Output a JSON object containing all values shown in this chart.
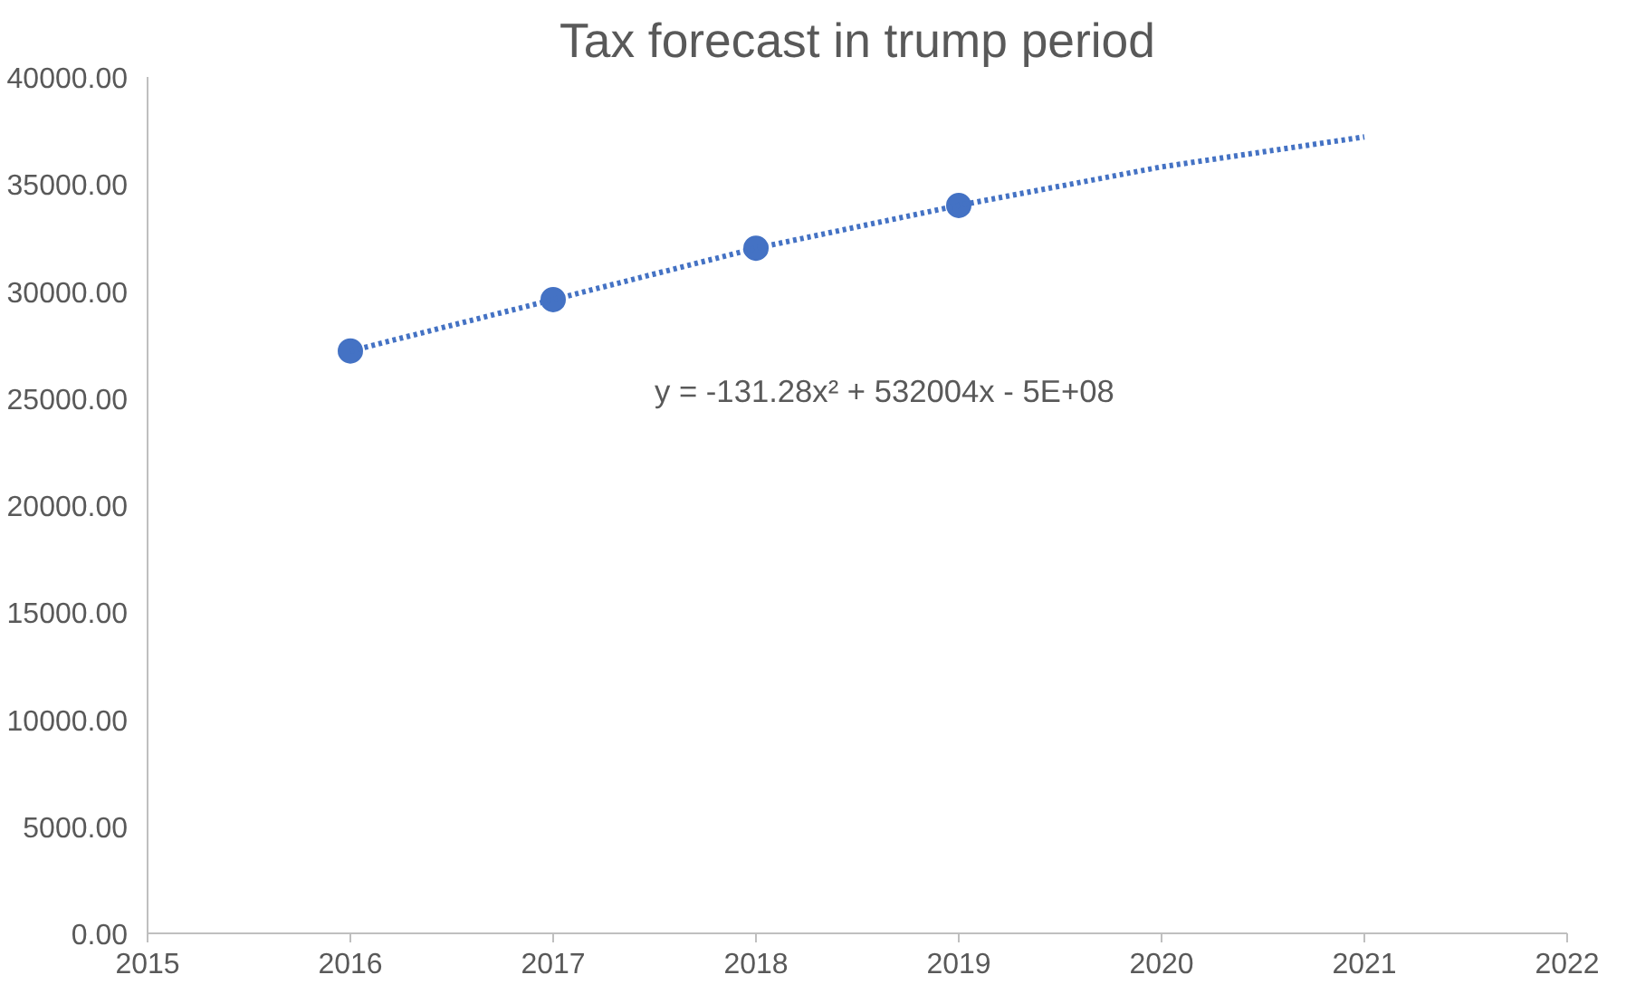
{
  "chart_data": {
    "type": "scatter",
    "title": "Tax forecast in trump period",
    "annotations": [
      "y = -131.28x² + 532004x - 5E+08"
    ],
    "x": [
      2016,
      2017,
      2018,
      2019
    ],
    "series": [
      {
        "color": "#4472c4",
        "marker": "circle",
        "values": [
          27200,
          29600,
          32000,
          34000
        ]
      },
      {
        "type": "line",
        "color": "#4472c4",
        "line_style": "dotted",
        "x": [
          2016,
          2017,
          2018,
          2019,
          2020,
          2021
        ],
        "values": [
          27200,
          29600,
          32000,
          34000,
          35800,
          37200
        ]
      }
    ],
    "xlim": [
      2015,
      2022
    ],
    "xticks": [
      2015,
      2016,
      2017,
      2018,
      2019,
      2020,
      2021,
      2022
    ],
    "ylim": [
      0,
      40000
    ],
    "yticks": [
      {
        "value": 0,
        "label": "0.00"
      },
      {
        "value": 5000,
        "label": "5000.00"
      },
      {
        "value": 10000,
        "label": "10000.00"
      },
      {
        "value": 15000,
        "label": "15000.00"
      },
      {
        "value": 20000,
        "label": "20000.00"
      },
      {
        "value": 25000,
        "label": "25000.00"
      },
      {
        "value": 30000,
        "label": "30000.00"
      },
      {
        "value": 35000,
        "label": "35000.00"
      },
      {
        "value": 40000,
        "label": "40000.00"
      }
    ],
    "grid": false
  }
}
